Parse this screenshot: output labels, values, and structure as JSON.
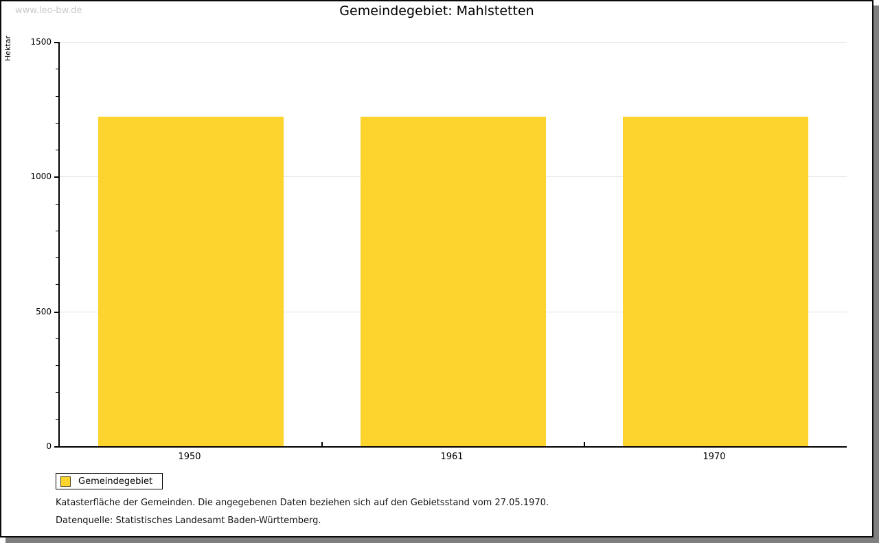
{
  "window": {
    "watermark": "www.leo-bw.de"
  },
  "header": {
    "title": "Gemeindegebiet: Mahlstetten"
  },
  "chart_data": {
    "type": "bar",
    "title": "Gemeindegebiet: Mahlstetten",
    "categories": [
      "1950",
      "1961",
      "1970"
    ],
    "values": [
      1222,
      1222,
      1222
    ],
    "series_name": "Gemeindegebiet",
    "xlabel": "",
    "ylabel": "Hektar",
    "ylim": [
      0,
      1500
    ],
    "ytick_major": 500,
    "ytick_minor": 100,
    "ytick_labels": [
      "0",
      "500",
      "1000",
      "1500"
    ],
    "grid": true,
    "legend_position": "bottom-left",
    "bar_color": "#fcd42d",
    "grid_color": "#e0e0e0"
  },
  "legend": {
    "items": [
      {
        "label": "Gemeindegebiet",
        "color": "#fcd42d"
      }
    ]
  },
  "footnotes": {
    "line1": "Katasterfläche der Gemeinden. Die angegebenen Daten beziehen sich auf den Gebietsstand vom 27.05.1970.",
    "line2": "Datenquelle: Statistisches Landesamt Baden-Württemberg."
  }
}
